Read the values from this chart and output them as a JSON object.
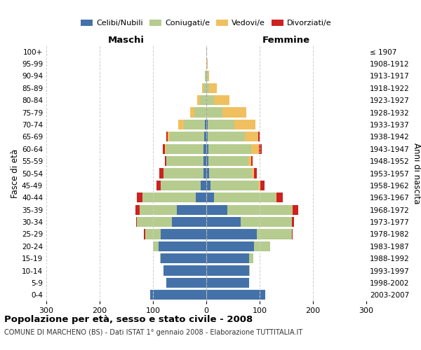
{
  "age_groups": [
    "0-4",
    "5-9",
    "10-14",
    "15-19",
    "20-24",
    "25-29",
    "30-34",
    "35-39",
    "40-44",
    "45-49",
    "50-54",
    "55-59",
    "60-64",
    "65-69",
    "70-74",
    "75-79",
    "80-84",
    "85-89",
    "90-94",
    "95-99",
    "100+"
  ],
  "birth_years": [
    "2003-2007",
    "1998-2002",
    "1993-1997",
    "1988-1992",
    "1983-1987",
    "1978-1982",
    "1973-1977",
    "1968-1972",
    "1963-1967",
    "1958-1962",
    "1953-1957",
    "1948-1952",
    "1943-1947",
    "1938-1942",
    "1933-1937",
    "1928-1932",
    "1923-1927",
    "1918-1922",
    "1913-1917",
    "1908-1912",
    "≤ 1907"
  ],
  "male": {
    "celibi": [
      105,
      75,
      80,
      85,
      90,
      85,
      65,
      55,
      20,
      10,
      5,
      5,
      5,
      4,
      2,
      0,
      0,
      0,
      0,
      0,
      0
    ],
    "coniugati": [
      0,
      0,
      0,
      2,
      10,
      30,
      65,
      70,
      100,
      75,
      75,
      70,
      70,
      65,
      40,
      22,
      12,
      5,
      2,
      0,
      0
    ],
    "vedovi": [
      0,
      0,
      0,
      0,
      0,
      0,
      0,
      0,
      0,
      0,
      0,
      0,
      2,
      3,
      10,
      8,
      5,
      3,
      0,
      0,
      0
    ],
    "divorziati": [
      0,
      0,
      0,
      0,
      0,
      2,
      2,
      8,
      10,
      8,
      8,
      3,
      5,
      3,
      0,
      0,
      0,
      0,
      0,
      0,
      0
    ]
  },
  "female": {
    "nubili": [
      110,
      80,
      80,
      80,
      90,
      95,
      65,
      40,
      15,
      8,
      5,
      4,
      4,
      3,
      2,
      0,
      0,
      0,
      0,
      0,
      0
    ],
    "coniugate": [
      0,
      0,
      2,
      8,
      30,
      65,
      95,
      120,
      115,
      90,
      80,
      75,
      80,
      70,
      50,
      30,
      15,
      5,
      2,
      0,
      0
    ],
    "vedove": [
      0,
      0,
      0,
      0,
      0,
      0,
      0,
      2,
      2,
      3,
      5,
      5,
      15,
      25,
      40,
      45,
      28,
      15,
      3,
      2,
      0
    ],
    "divorziate": [
      0,
      0,
      0,
      0,
      0,
      2,
      5,
      10,
      12,
      8,
      5,
      3,
      5,
      2,
      0,
      0,
      0,
      0,
      0,
      0,
      0
    ]
  },
  "colors": {
    "celibi": "#4472a8",
    "coniugati": "#b5cc8e",
    "vedovi": "#f0c060",
    "divorziati": "#cc2222"
  },
  "title": "Popolazione per età, sesso e stato civile - 2008",
  "subtitle": "COMUNE DI MARCHENO (BS) - Dati ISTAT 1° gennaio 2008 - Elaborazione TUTTITALIA.IT",
  "xlabel_left": "Maschi",
  "xlabel_right": "Femmine",
  "ylabel_left": "Fasce di età",
  "ylabel_right": "Anni di nascita",
  "xlim": 300,
  "legend_labels": [
    "Celibi/Nubili",
    "Coniugati/e",
    "Vedovi/e",
    "Divorziati/e"
  ]
}
